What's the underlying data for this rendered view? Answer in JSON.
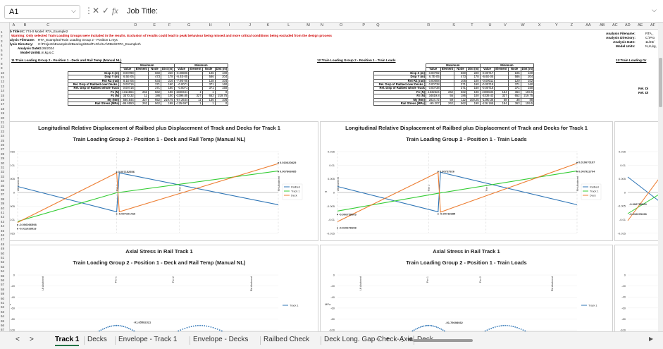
{
  "formula_bar": {
    "cell": "A1",
    "formula": "Job Title:",
    "cancel": "✕",
    "enter": "✓",
    "fx": "fx",
    "menu": "⋮"
  },
  "columns": [
    "A",
    "B",
    "C",
    "D",
    "E",
    "F",
    "G",
    "H",
    "I",
    "J",
    "K",
    "L",
    "M",
    "N",
    "O",
    "P",
    "Q",
    "R",
    "S",
    "T",
    "U",
    "V",
    "W",
    "X",
    "Y",
    "Z",
    "AA",
    "AB",
    "AC",
    "AD",
    "AE",
    "AF"
  ],
  "rows": [
    "1",
    "2",
    "3",
    "4",
    "5",
    "6",
    "7",
    "8",
    "9",
    "10",
    "11",
    "12",
    "13",
    "14",
    "15",
    "16",
    "17",
    "18",
    "19",
    "20",
    "21",
    "22",
    "23",
    "24",
    "25",
    "26",
    "27",
    "28",
    "29",
    "30",
    "31",
    "32",
    "33",
    "34",
    "35",
    "36",
    "37",
    "38",
    "39",
    "40",
    "41",
    "42",
    "43",
    "44",
    "45",
    "46",
    "47",
    "48",
    "49",
    "50",
    "51",
    "52",
    "53",
    "54",
    "55",
    "56",
    "57",
    "58",
    "59",
    "60",
    "61",
    "62",
    "63",
    "64",
    "65",
    "66",
    "67"
  ],
  "header": {
    "job_title": "b Title: ",
    "job_value": "MC 774-0 Model: RTA_Example2",
    "warning": "Warning: Only selected Train Loading Groups were included in the results. Exclusion of results could lead to peak behaviour being missed and more critical conditions being excluded from the design process",
    "file_label": "alysis Filename:",
    "file_value": "RTA_Example2/Train Loading Group 2 - Position 1.mys",
    "dir_label": "lysis Directory:",
    "dir_value": "C:\\Projects\\Examples\\2Bearings\\ModTLG\\U\\UA\\RBot\\2RTA_Example2\\",
    "date_label": "Analysis Date:",
    "date_value": "11/26/2024",
    "units_label": "Model Units:",
    "units_value": "N,m,kg,s,C",
    "r_file_label": "Analysis Filename:",
    "r_file_value": "RTA_",
    "r_dir_label": "Analysis Directory:",
    "r_dir_value": "C:\\Pro",
    "r_date_label": "Analysis Date:",
    "r_date_value": "11/26/",
    "r_units_label": "Model Units:",
    "r_units_value": "N,m,kg,"
  },
  "section1": {
    "title": "11:Train Loading Group 2 - Position 1 - Deck and Rail Temp (Manual NL)"
  },
  "section2": {
    "title": "12:Train Loading Group 2 - Position 1 - Train Loads"
  },
  "section3": {
    "title": "13:Train Loading Gr"
  },
  "table_headers": {
    "max": "Maximum",
    "min": "Minimum",
    "value": "Value",
    "element": "Element",
    "node": "Node",
    "dist": "Dist (m)"
  },
  "table1": [
    {
      "label": "Disp X (m)",
      "v": [
        "0.00789",
        "",
        "660",
        "220",
        "-0.00806",
        "",
        "106",
        "100"
      ]
    },
    {
      "label": "Disp Y (m)",
      "v": [
        "6.5E-05",
        "",
        "473",
        "178",
        "-6.4E-05",
        "",
        "586",
        "204"
      ]
    },
    {
      "label": "Rot RZ (rad)",
      "v": [
        "8.1E-05",
        "",
        "634",
        "216",
        "-7.9E-05",
        "",
        "128",
        "104"
      ]
    },
    {
      "label": "Rel. Disp of Railbed over Decks (",
      "v": [
        "0.00716",
        "",
        "371",
        "160",
        "-0.0071",
        "",
        "371",
        "160"
      ]
    },
    {
      "label": "Rel. Disp of Railbed whole Track",
      "v": [
        "0.00716",
        "",
        "371",
        "160",
        "-0.0071",
        "",
        "371",
        "160"
      ]
    },
    {
      "label": "Fx (N)",
      "v": [
        "-1314664",
        "262",
        "562",
        "198",
        "-1930341",
        "1",
        "1",
        "0"
      ]
    },
    {
      "label": "Fz (N)",
      "v": [
        "3370.32",
        "11",
        "186",
        "100",
        "-3396.85",
        "327",
        "652",
        "219.75"
      ]
    },
    {
      "label": "My (Nm)",
      "v": [
        "560.544",
        "327",
        "652",
        "219.75",
        "-87.2644",
        "11",
        "136",
        "106"
      ]
    },
    {
      "label": "Rail Stress (MPa)",
      "v": [
        "-95.6550",
        "262",
        "562",
        "198",
        "-125.697",
        "1",
        "1",
        "0"
      ]
    }
  ],
  "table2": [
    {
      "label": "Disp X (m)",
      "v": [
        "0.00792",
        "",
        "660",
        "220",
        "-0.00717",
        "",
        "106",
        "100"
      ]
    },
    {
      "label": "Disp Y (m)",
      "v": [
        "6.7E-05",
        "",
        "473",
        "178",
        "-6.6E-05",
        "",
        "586",
        "204"
      ]
    },
    {
      "label": "Rot RZ (rad)",
      "v": [
        "0.00008",
        "",
        "106",
        "100",
        "-0.00011",
        "",
        "120",
        "102"
      ]
    },
    {
      "label": "Rel. Disp of Railbed over Decks (",
      "v": [
        "0.00738",
        "",
        "371",
        "160",
        "-0.00718",
        "",
        "371",
        "160"
      ]
    },
    {
      "label": "Rel. Disp of Railbed whole Track",
      "v": [
        "0.00738",
        "",
        "371",
        "160",
        "-0.00718",
        "",
        "371",
        "160"
      ]
    },
    {
      "label": "Fx (N)",
      "v": [
        "-1332524",
        "262",
        "562",
        "198",
        "-1905533",
        "184",
        "363",
        "159.5"
      ]
    },
    {
      "label": "Fz (N)",
      "v": [
        "34819.8",
        "55",
        "186",
        "100",
        "-3339.43",
        "327",
        "652",
        "219.75"
      ]
    },
    {
      "label": "My (Nm)",
      "v": [
        "2024.72",
        "59",
        "112",
        "100.25",
        "-1290.36",
        "58",
        "38",
        "88"
      ]
    },
    {
      "label": "Rail Stress (MPa)",
      "v": [
        "-95.207",
        "262",
        "562",
        "198",
        "-126.165",
        "184",
        "363",
        "159.5"
      ]
    }
  ],
  "charts": {
    "c1_title": "Longitudinal Relative Displacement of Railbed plus Displacement of Track and Decks for Track 1",
    "c1_sub": "Train Loading Group 2 - Position 1 - Deck and Rail Temp (Manual NL)",
    "c2_title": "Longitudinal Relative Displacement of Railbed plus Displacement of Track and Decks for Track 1",
    "c2_sub": "Train Loading Group 2 - Position 1 - Train Loads",
    "c3_title": "Axial Stress in Rail Track 1",
    "c3_sub": "Train Loading Group 2 - Position 1 - Deck and Rail Temp (Manual NL)",
    "c4_title": "Axial Stress in Rail Track 1",
    "c4_sub": "Train Loading Group 2 - Position 1 - Train Loads",
    "yticks": [
      "0.015",
      "0.01",
      "0.005",
      "0",
      "-0.005",
      "-0.01",
      "-0.015"
    ],
    "yticks_stress": [
      "0",
      "-20",
      "-40",
      "-60",
      "-80",
      "-100"
    ],
    "markers": [
      "Lft Abutment",
      "Pier 1",
      "Pier 2",
      "Rht Abutment"
    ],
    "legend": [
      "Railbed",
      "Track 1",
      "Deck"
    ],
    "legend_stress": [
      "Track 1"
    ],
    "ylabel": "m",
    "ylabel_stress": "MPa",
    "c1_labels": [
      "0.010620825",
      "0.007866985",
      "0.007152556",
      "-0.007101416",
      "-0.006066598",
      "-0.011028513"
    ],
    "c2_labels": [
      "0.010670197",
      "0.007922704",
      "0.00737926",
      "-0.00718385",
      "-0.006758663",
      "-0.010678198"
    ],
    "c3_label": "-91.65582321",
    "c4_label": "-91.79698932",
    "colors": {
      "railbed": "#2e75b6",
      "track": "#33cc33",
      "deck": "#ed7d31"
    }
  },
  "chart_data": [
    {
      "type": "line",
      "title": "Longitudinal Relative Displacement of Railbed plus Displacement of Track and Decks for Track 1",
      "subtitle": "Train Loading Group 2 - Position 1 - Deck and Rail Temp (Manual NL)",
      "ylabel": "m",
      "ylim": [
        -0.015,
        0.015
      ],
      "series": [
        {
          "name": "Railbed",
          "points": [
            [
              0,
              0.0022
            ],
            [
              0.38,
              -0.0071
            ],
            [
              0.39,
              0.0072
            ],
            [
              1,
              -0.0045
            ]
          ]
        },
        {
          "name": "Track 1",
          "points": [
            [
              0,
              -0.0106
            ],
            [
              0.38,
              -0.0001
            ],
            [
              1,
              0.0079
            ]
          ]
        },
        {
          "name": "Deck",
          "points": [
            [
              0,
              -0.011
            ],
            [
              0.38,
              0.0072
            ],
            [
              0.39,
              -0.0071
            ],
            [
              1,
              0.0106
            ]
          ]
        }
      ]
    },
    {
      "type": "line",
      "title": "Longitudinal Relative Displacement of Railbed plus Displacement of Track and Decks for Track 1",
      "subtitle": "Train Loading Group 2 - Position 1 - Train Loads",
      "ylabel": "m",
      "ylim": [
        -0.015,
        0.015
      ],
      "series": [
        {
          "name": "Railbed",
          "points": [
            [
              0,
              0.0022
            ],
            [
              0.42,
              -0.0071
            ],
            [
              0.43,
              0.0074
            ],
            [
              1,
              -0.0045
            ]
          ]
        },
        {
          "name": "Track 1",
          "points": [
            [
              0,
              -0.0068
            ],
            [
              0.42,
              -0.0003
            ],
            [
              1,
              0.0079
            ]
          ]
        },
        {
          "name": "Deck",
          "points": [
            [
              0,
              -0.0107
            ],
            [
              0.42,
              0.0074
            ],
            [
              0.43,
              -0.0072
            ],
            [
              1,
              0.0107
            ]
          ]
        }
      ]
    },
    {
      "type": "line",
      "title": "Axial Stress in Rail Track 1",
      "subtitle": "Train Loading Group 2 - Position 1 - Deck and Rail Temp (Manual NL)",
      "ylabel": "MPa",
      "ylim": [
        -100,
        0
      ],
      "series": [
        {
          "name": "Track 1",
          "points": [
            [
              0.3,
              -105
            ],
            [
              0.38,
              -91.7
            ],
            [
              0.46,
              -105
            ],
            [
              0.6,
              -105
            ],
            [
              0.7,
              -91.7
            ],
            [
              0.8,
              -105
            ]
          ]
        }
      ]
    },
    {
      "type": "line",
      "title": "Axial Stress in Rail Track 1",
      "subtitle": "Train Loading Group 2 - Position 1 - Train Loads",
      "ylabel": "MPa",
      "ylim": [
        -100,
        0
      ],
      "series": [
        {
          "name": "Track 1",
          "points": [
            [
              0.3,
              -105
            ],
            [
              0.38,
              -91.8
            ],
            [
              0.46,
              -105
            ],
            [
              0.6,
              -105
            ],
            [
              0.7,
              -91.8
            ],
            [
              0.8,
              -105
            ]
          ]
        }
      ]
    }
  ],
  "tabs": [
    "Track 1",
    "Decks",
    "Envelope - Track 1",
    "Envelope - Decks",
    "Railbed Check",
    "Deck Long. Gap Check-Axial",
    "Deck"
  ],
  "tab_nav": {
    "prev": "<",
    "next": ">",
    "more": "⋯",
    "add": "+",
    "menu": "⋮"
  }
}
